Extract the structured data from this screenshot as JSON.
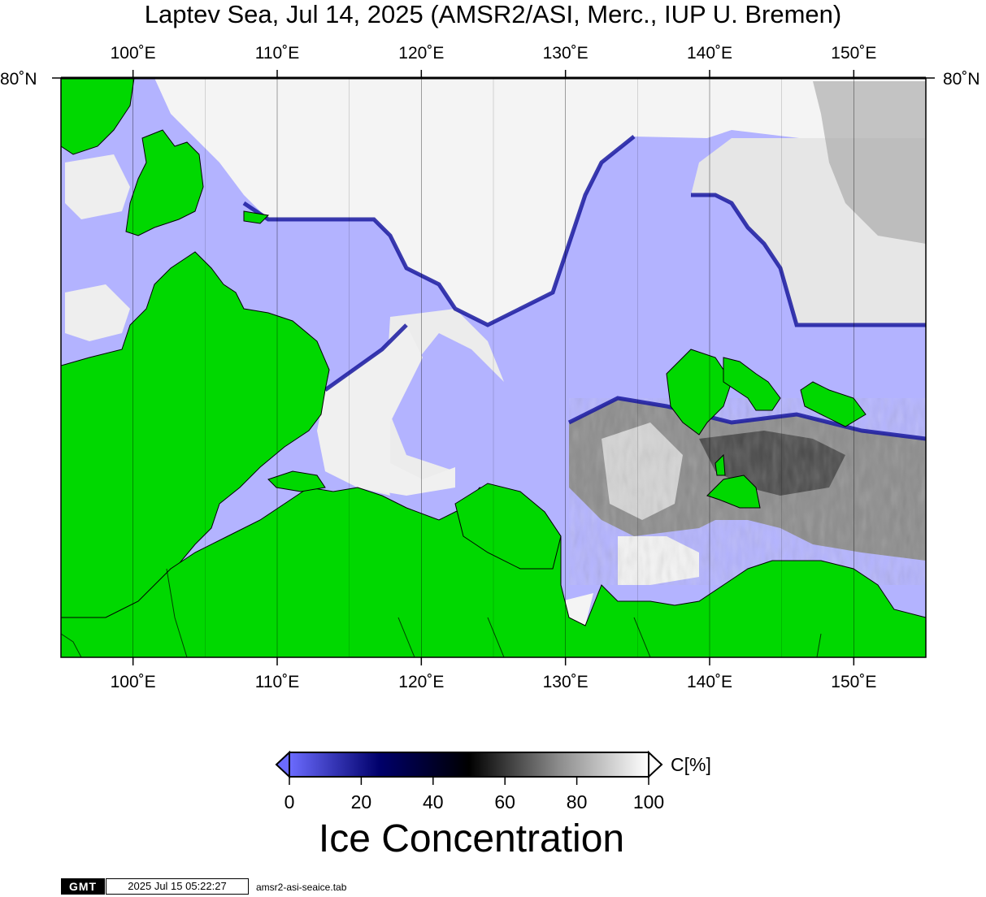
{
  "title": "Laptev Sea, Jul 14, 2025 (AMSR2/ASI, Merc., IUP U. Bremen)",
  "map": {
    "lon_ticks": [
      "100˚E",
      "110˚E",
      "120˚E",
      "130˚E",
      "140˚E",
      "150˚E"
    ],
    "lon_values": [
      100,
      110,
      120,
      130,
      140,
      150
    ],
    "lon_range": [
      95,
      155
    ],
    "lat_label_left": "80˚N",
    "lat_label_right": "80˚N",
    "gridlines": "on",
    "colors": {
      "land": "#00d800",
      "open_water": "#b3b3ff",
      "frame": "#000000"
    }
  },
  "colorbar": {
    "title": "Ice Concentration",
    "unit": "C[%]",
    "ticks": [
      "0",
      "20",
      "40",
      "60",
      "80",
      "100"
    ],
    "range": [
      0,
      100
    ],
    "stops": [
      {
        "value": 0,
        "color": "#6b6bff"
      },
      {
        "value": 25,
        "color": "#00006b"
      },
      {
        "value": 50,
        "color": "#000000"
      },
      {
        "value": 75,
        "color": "#8c8c8c"
      },
      {
        "value": 100,
        "color": "#ffffff"
      }
    ]
  },
  "footer": {
    "logo": "GMT",
    "timestamp": "2025 Jul 15 05:22:27",
    "file": "amsr2-asi-seaice.tab"
  }
}
